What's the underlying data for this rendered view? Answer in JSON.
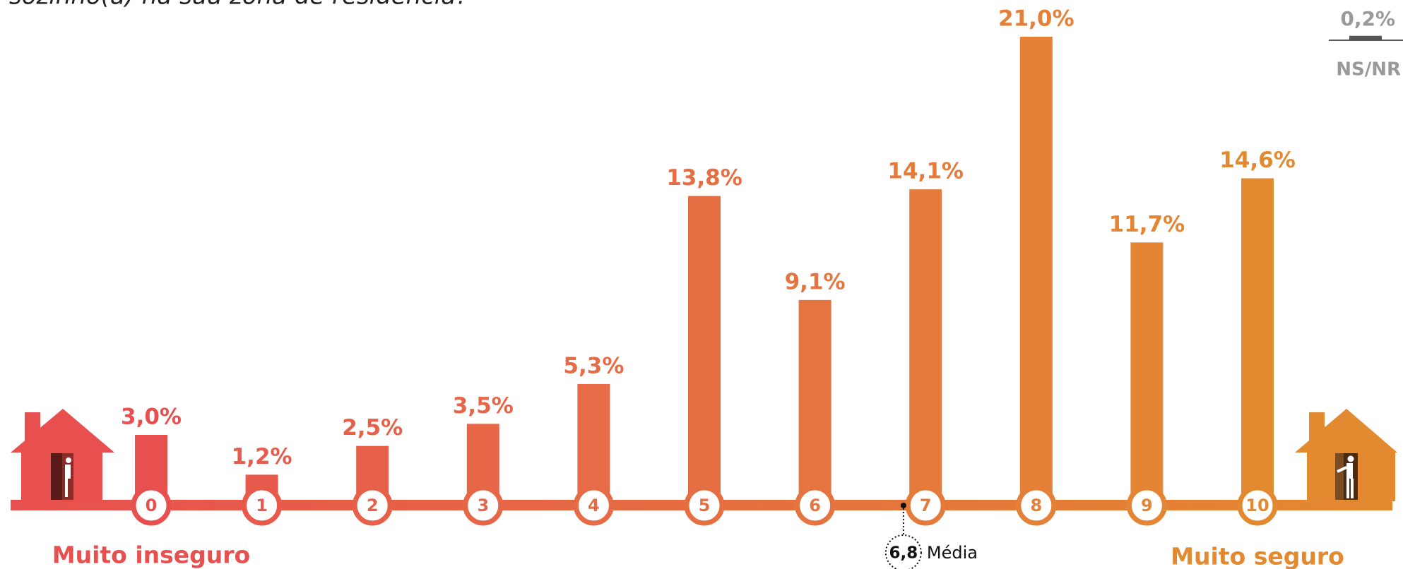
{
  "chart_data": {
    "type": "bar",
    "title": "sozinho(a) na sua zona de residência?",
    "categories": [
      "0",
      "1",
      "2",
      "3",
      "4",
      "5",
      "6",
      "7",
      "8",
      "9",
      "10"
    ],
    "values": [
      3.0,
      1.2,
      2.5,
      3.5,
      5.3,
      13.8,
      9.1,
      14.1,
      21.0,
      11.7,
      14.6
    ],
    "value_labels": [
      "3,0%",
      "1,2%",
      "2,5%",
      "3,5%",
      "5,3%",
      "13,8%",
      "9,1%",
      "14,1%",
      "21,0%",
      "11,7%",
      "14,6%"
    ],
    "colors": [
      "#e8504f",
      "#e85a4c",
      "#e7614a",
      "#e76648",
      "#e66b46",
      "#e56f43",
      "#e57540",
      "#e47b3b",
      "#e48037",
      "#e38533",
      "#e38a30"
    ],
    "ylim": [
      0,
      21
    ],
    "left_label": "Muito inseguro",
    "right_label": "Muito seguro",
    "mean": {
      "value": 6.8,
      "label": "6,8",
      "name": "Média"
    },
    "no_answer": {
      "name": "NS/NR",
      "value": 0.2,
      "label": "0,2%"
    }
  }
}
